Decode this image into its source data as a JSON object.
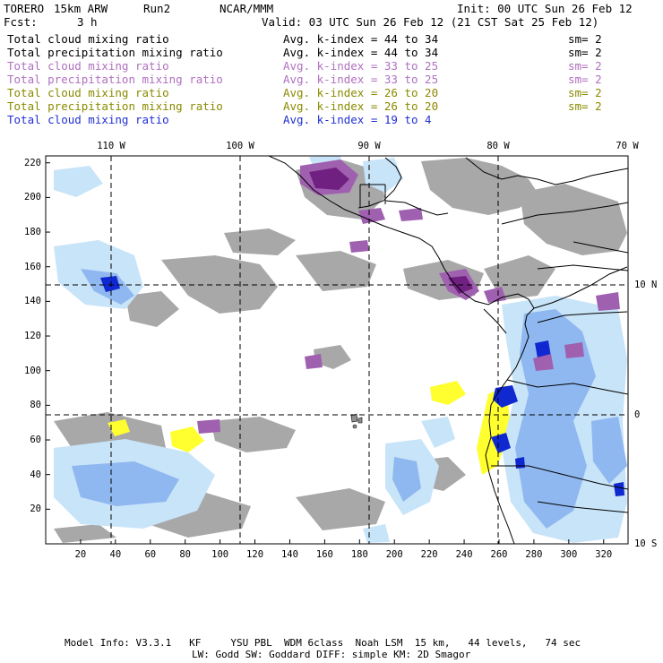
{
  "header": {
    "project": "TORERO",
    "model": "15km ARW",
    "run": "Run2",
    "center": "NCAR/MMM",
    "init": "Init: 00 UTC Sun 26 Feb 12",
    "fcst_label": "Fcst:",
    "fcst_value": "3 h",
    "valid": "Valid: 03 UTC Sun 26 Feb 12 (21 CST Sat 25 Feb 12)"
  },
  "legend": [
    {
      "field": "Total cloud mixing ratio",
      "kindex": "Avg. k-index = 44 to 34",
      "sm": "sm= 2",
      "color": "#000000"
    },
    {
      "field": "Total precipitation mixing ratio",
      "kindex": "Avg. k-index = 44 to 34",
      "sm": "sm= 2",
      "color": "#000000"
    },
    {
      "field": "Total cloud mixing ratio",
      "kindex": "Avg. k-index = 33 to 25",
      "sm": "sm= 2",
      "color": "#b070c0"
    },
    {
      "field": "Total precipitation mixing ratio",
      "kindex": "Avg. k-index = 33 to 25",
      "sm": "sm= 2",
      "color": "#b070c0"
    },
    {
      "field": "Total cloud mixing ratio",
      "kindex": "Avg. k-index = 26 to 20",
      "sm": "sm= 2",
      "color": "#8a8a00"
    },
    {
      "field": "Total precipitation mixing ratio",
      "kindex": "Avg. k-index = 26 to 20",
      "sm": "sm= 2",
      "color": "#8a8a00"
    },
    {
      "field": "Total cloud mixing ratio",
      "kindex": "Avg. k-index = 19 to 4",
      "sm": "",
      "color": "#2030d0"
    }
  ],
  "axes": {
    "x_ticks": [
      "20",
      "40",
      "60",
      "80",
      "100",
      "120",
      "140",
      "160",
      "180",
      "200",
      "220",
      "240",
      "260",
      "280",
      "300",
      "320"
    ],
    "y_ticks": [
      "20",
      "40",
      "60",
      "80",
      "100",
      "120",
      "140",
      "160",
      "180",
      "200",
      "220"
    ],
    "lon_labels": [
      "110 W",
      "100 W",
      "90 W",
      "80 W",
      "70 W"
    ],
    "lat_labels": [
      "10 N",
      "0",
      "10 S"
    ]
  },
  "colors": {
    "gray": "#a0a0a0",
    "purple": "#a060b0",
    "dark_purple": "#702080",
    "yellow": "#ffff30",
    "light_blue": "#c8e4f8",
    "mid_blue": "#90b8f0",
    "dark_blue": "#1028d0"
  },
  "footer": {
    "line1": "Model Info: V3.3.1   KF     YSU PBL  WDM 6class  Noah LSM  15 km,   44 levels,   74 sec",
    "line2": "LW: Godd SW: Goddard DIFF: simple KM: 2D Smagor"
  }
}
